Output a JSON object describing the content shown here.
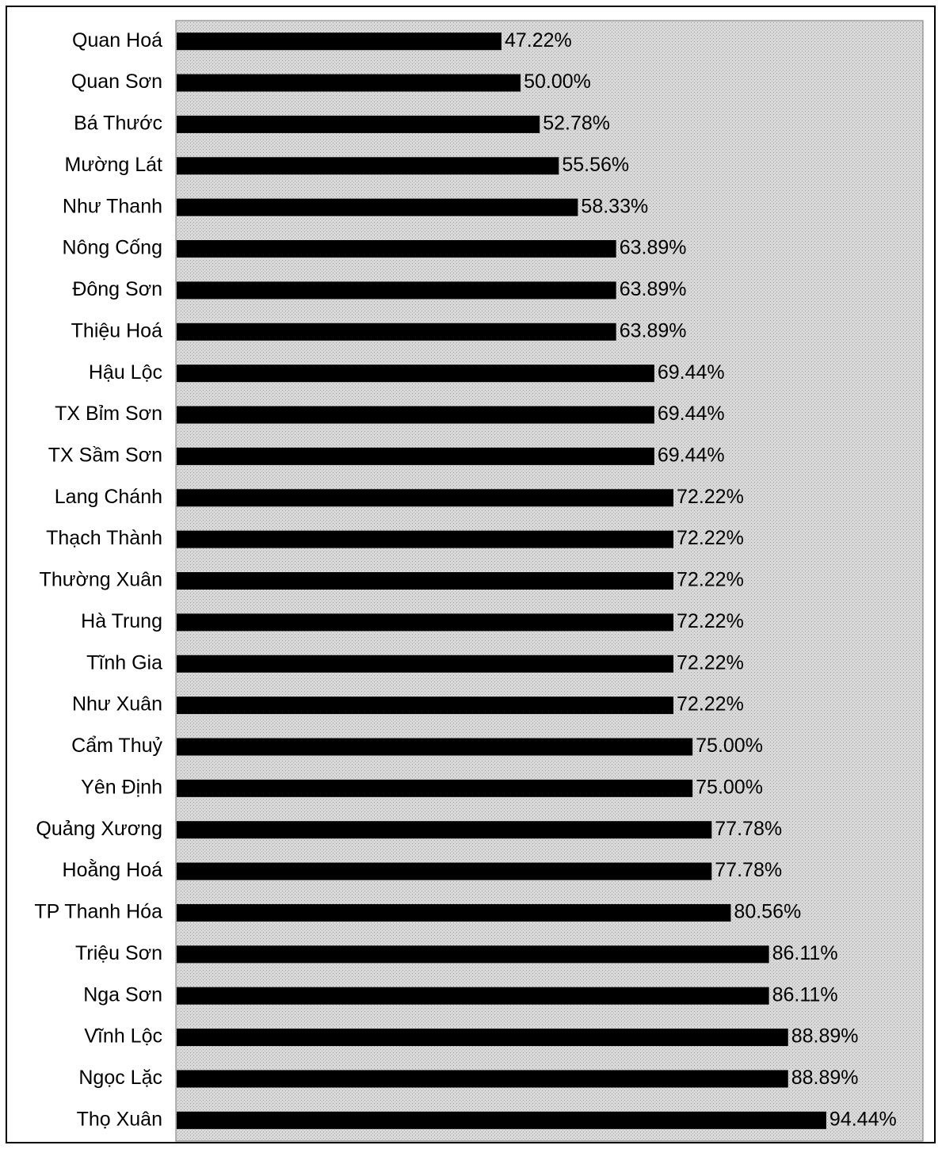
{
  "chart_data": {
    "type": "barh",
    "categories": [
      "Quan Hoá",
      "Quan Sơn",
      "Bá Thước",
      "Mường Lát",
      "Như Thanh",
      "Nông Cống",
      "Đông Sơn",
      "Thiệu Hoá",
      "Hậu Lộc",
      "TX Bỉm Sơn",
      "TX Sầm Sơn",
      "Lang Chánh",
      "Thạch Thành",
      "Thường Xuân",
      "Hà Trung",
      "Tĩnh Gia",
      "Như Xuân",
      "Cẩm Thuỷ",
      "Yên Định",
      "Quảng Xương",
      "Hoằng Hoá",
      "TP Thanh Hóa",
      "Triệu Sơn",
      "Nga Sơn",
      "Vĩnh Lộc",
      "Ngọc Lặc",
      "Thọ Xuân"
    ],
    "values": [
      47.22,
      50.0,
      52.78,
      55.56,
      58.33,
      63.89,
      63.89,
      63.89,
      69.44,
      69.44,
      69.44,
      72.22,
      72.22,
      72.22,
      72.22,
      72.22,
      72.22,
      75.0,
      75.0,
      77.78,
      77.78,
      80.56,
      86.11,
      86.11,
      88.89,
      88.89,
      94.44
    ],
    "value_labels": [
      "47.22%",
      "50.00%",
      "52.78%",
      "55.56%",
      "58.33%",
      "63.89%",
      "63.89%",
      "63.89%",
      "69.44%",
      "69.44%",
      "69.44%",
      "72.22%",
      "72.22%",
      "72.22%",
      "72.22%",
      "72.22%",
      "72.22%",
      "75.00%",
      "75.00%",
      "77.78%",
      "77.78%",
      "80.56%",
      "86.11%",
      "86.11%",
      "88.89%",
      "88.89%",
      "94.44%"
    ],
    "color": "#000000",
    "xlim": [
      0,
      108.5
    ]
  }
}
